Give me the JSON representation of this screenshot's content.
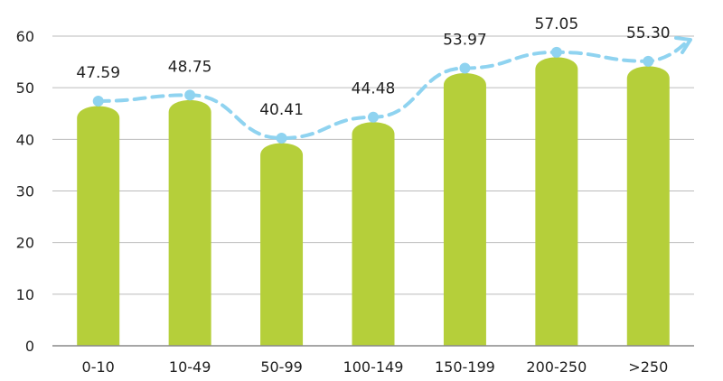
{
  "chart_data": {
    "type": "bar",
    "title": "",
    "xlabel": "",
    "ylabel": "",
    "ylim": [
      0,
      60
    ],
    "yticks": [
      0,
      10,
      20,
      30,
      40,
      50,
      60
    ],
    "grid": true,
    "categories": [
      "0-10",
      "10-49",
      "50-99",
      "100-149",
      "150-199",
      "200-250",
      ">250"
    ],
    "values": [
      47.59,
      48.75,
      40.41,
      44.48,
      53.97,
      57.05,
      55.3
    ],
    "data_labels": [
      "47.59",
      "48.75",
      "40.41",
      "44.48",
      "53.97",
      "57.05",
      "55.30"
    ],
    "overlay_line": {
      "type": "line",
      "style": "dashed",
      "marker": "circle",
      "arrow_end": true,
      "values": [
        47.59,
        48.75,
        40.41,
        44.48,
        53.97,
        57.05,
        55.3
      ]
    },
    "colors": {
      "bar": "#b5cf3a",
      "line": "#8fd3f0",
      "grid": "#bbbbbb",
      "axis": "#888888"
    }
  }
}
